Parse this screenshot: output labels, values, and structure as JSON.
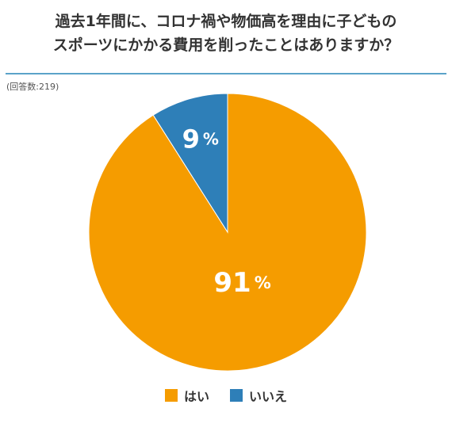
{
  "title_lines": [
    "過去1年間に、コロナ禍や物価高を理由に子どもの",
    "スポーツにかかる費用を削ったことはありますか？"
  ],
  "note": "(回答数:219)",
  "colors": {
    "accent_rule": "#5ba3c9",
    "yes": "#f59c00",
    "no": "#2e7fb8"
  },
  "chart_data": {
    "type": "pie",
    "slices": [
      {
        "label": "はい",
        "value": 91,
        "display": "91",
        "unit": "%",
        "color": "#f59c00"
      },
      {
        "label": "いいえ",
        "value": 9,
        "display": "9",
        "unit": "%",
        "color": "#2e7fb8"
      }
    ],
    "legend_position": "bottom"
  }
}
